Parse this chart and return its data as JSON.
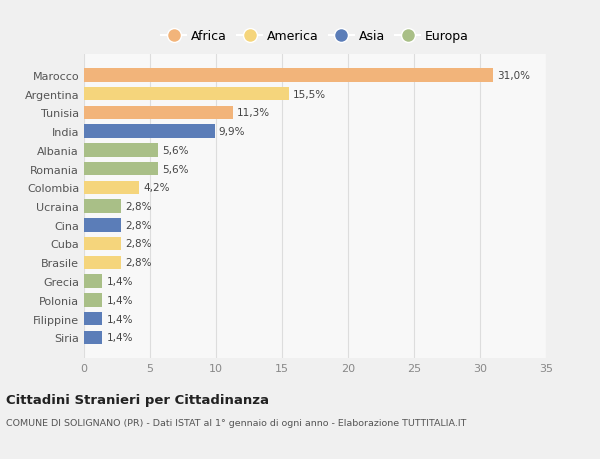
{
  "categories": [
    "Marocco",
    "Argentina",
    "Tunisia",
    "India",
    "Albania",
    "Romania",
    "Colombia",
    "Ucraina",
    "Cina",
    "Cuba",
    "Brasile",
    "Grecia",
    "Polonia",
    "Filippine",
    "Siria"
  ],
  "values": [
    31.0,
    15.5,
    11.3,
    9.9,
    5.6,
    5.6,
    4.2,
    2.8,
    2.8,
    2.8,
    2.8,
    1.4,
    1.4,
    1.4,
    1.4
  ],
  "labels": [
    "31,0%",
    "15,5%",
    "11,3%",
    "9,9%",
    "5,6%",
    "5,6%",
    "4,2%",
    "2,8%",
    "2,8%",
    "2,8%",
    "2,8%",
    "1,4%",
    "1,4%",
    "1,4%",
    "1,4%"
  ],
  "colors": [
    "#F2B47A",
    "#F5D57C",
    "#F2B47A",
    "#5B7DB8",
    "#A9BF87",
    "#A9BF87",
    "#F5D57C",
    "#A9BF87",
    "#5B7DB8",
    "#F5D57C",
    "#F5D57C",
    "#A9BF87",
    "#A9BF87",
    "#5B7DB8",
    "#5B7DB8"
  ],
  "legend_labels": [
    "Africa",
    "America",
    "Asia",
    "Europa"
  ],
  "legend_colors": [
    "#F2B47A",
    "#F5D57C",
    "#5B7DB8",
    "#A9BF87"
  ],
  "title": "Cittadini Stranieri per Cittadinanza",
  "subtitle": "COMUNE DI SOLIGNANO (PR) - Dati ISTAT al 1° gennaio di ogni anno - Elaborazione TUTTITALIA.IT",
  "xlim": [
    0,
    35
  ],
  "xticks": [
    0,
    5,
    10,
    15,
    20,
    25,
    30,
    35
  ],
  "bg_color": "#f0f0f0",
  "plot_bg_color": "#f8f8f8"
}
